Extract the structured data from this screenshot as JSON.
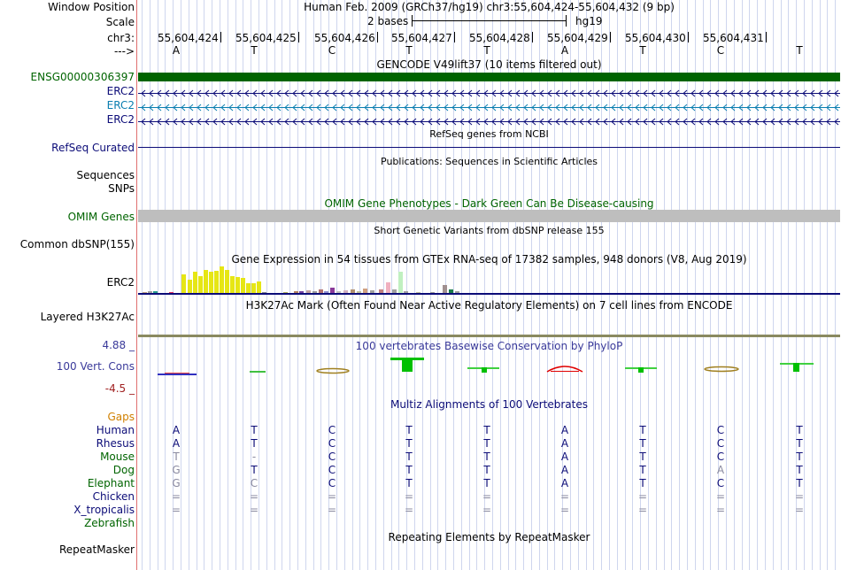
{
  "header": {
    "window_position_label": "Window Position",
    "window_position_value": "Human Feb. 2009 (GRCh37/hg19)   chr3:55,604,424-55,604,432 (9 bp)",
    "scale_label": "Scale",
    "scale_text": "2 bases",
    "scale_assembly": "hg19",
    "chrom_label": "chr3:",
    "strand_label": "--->",
    "positions": [
      "55,604,424",
      "55,604,425",
      "55,604,426",
      "55,604,427",
      "55,604,428",
      "55,604,429",
      "55,604,430",
      "55,604,431"
    ],
    "bases": [
      "A",
      "T",
      "C",
      "T",
      "T",
      "A",
      "T",
      "C",
      "T"
    ]
  },
  "tracks": {
    "gencode_title": "GENCODE V49lift37 (10 items filtered out)",
    "gencode_items": [
      {
        "name": "ENSG00000306397",
        "color": "#006400"
      },
      {
        "name": "ERC2",
        "color": "#0c0c78"
      },
      {
        "name": "ERC2",
        "color": "#0a7eb0"
      },
      {
        "name": "ERC2",
        "color": "#0c0c78"
      }
    ],
    "refseq_title": "RefSeq genes from NCBI",
    "refseq_label": "RefSeq Curated",
    "publications_title": "Publications: Sequences in Scientific Articles",
    "publications_label1": "Sequences",
    "publications_label2": "SNPs",
    "omim_title": "OMIM Gene Phenotypes - Dark Green Can Be Disease-causing",
    "omim_label": "OMIM Genes",
    "dbsnp_label": "Common dbSNP(155)",
    "dbsnp_title": "Short Genetic Variants from dbSNP release 155",
    "gtex_title": "Gene Expression in 54 tissues from GTEx RNA-seq of 17382 samples, 948 donors (V8, Aug 2019)",
    "gtex_label": "ERC2",
    "h3k27_title": "H3K27Ac Mark (Often Found Near Active Regulatory Elements) on 7 cell lines from ENCODE",
    "h3k27_label": "Layered H3K27Ac",
    "cons_title": "100 vertebrates Basewise Conservation by PhyloP",
    "cons_label": "100 Vert. Cons",
    "cons_max": "4.88 _",
    "cons_min": "-4.5 _",
    "multiz_title": "Multiz Alignments of 100 Vertebrates",
    "gaps_label": "Gaps",
    "species": [
      {
        "name": "Human",
        "color": "#0c0c78",
        "bases": [
          "A",
          "T",
          "C",
          "T",
          "T",
          "A",
          "T",
          "C",
          "T"
        ]
      },
      {
        "name": "Rhesus",
        "color": "#0c0c78",
        "bases": [
          "A",
          "T",
          "C",
          "T",
          "T",
          "A",
          "T",
          "C",
          "T"
        ]
      },
      {
        "name": "Mouse",
        "color": "#006400",
        "bases": [
          "T",
          "-",
          "C",
          "T",
          "T",
          "A",
          "T",
          "C",
          "T"
        ]
      },
      {
        "name": "Dog",
        "color": "#006400",
        "bases": [
          "G",
          "T",
          "C",
          "T",
          "T",
          "A",
          "T",
          "A",
          "T"
        ]
      },
      {
        "name": "Elephant",
        "color": "#006400",
        "bases": [
          "G",
          "C",
          "C",
          "T",
          "T",
          "A",
          "T",
          "C",
          "T"
        ]
      },
      {
        "name": "Chicken",
        "color": "#0c0c78",
        "bases": [
          "=",
          "=",
          "=",
          "=",
          "=",
          "=",
          "=",
          "=",
          "="
        ]
      },
      {
        "name": "X_tropicalis",
        "color": "#0c0c78",
        "bases": [
          "=",
          "=",
          "=",
          "=",
          "=",
          "=",
          "=",
          "=",
          "="
        ]
      },
      {
        "name": "Zebrafish",
        "color": "#006400",
        "bases": [
          "",
          "",
          "",
          "",
          "",
          "",
          "",
          "",
          ""
        ]
      }
    ],
    "repeat_title": "Repeating Elements by RepeatMasker",
    "repeat_label": "RepeatMasker"
  },
  "colors": {
    "gtex_yellow": "#e6e614",
    "dark_green": "#006400",
    "navy": "#0c0c78",
    "omim_gray": "#bebebe",
    "cons_title": "#3a3a9a",
    "gaps_orange": "#d08000"
  }
}
